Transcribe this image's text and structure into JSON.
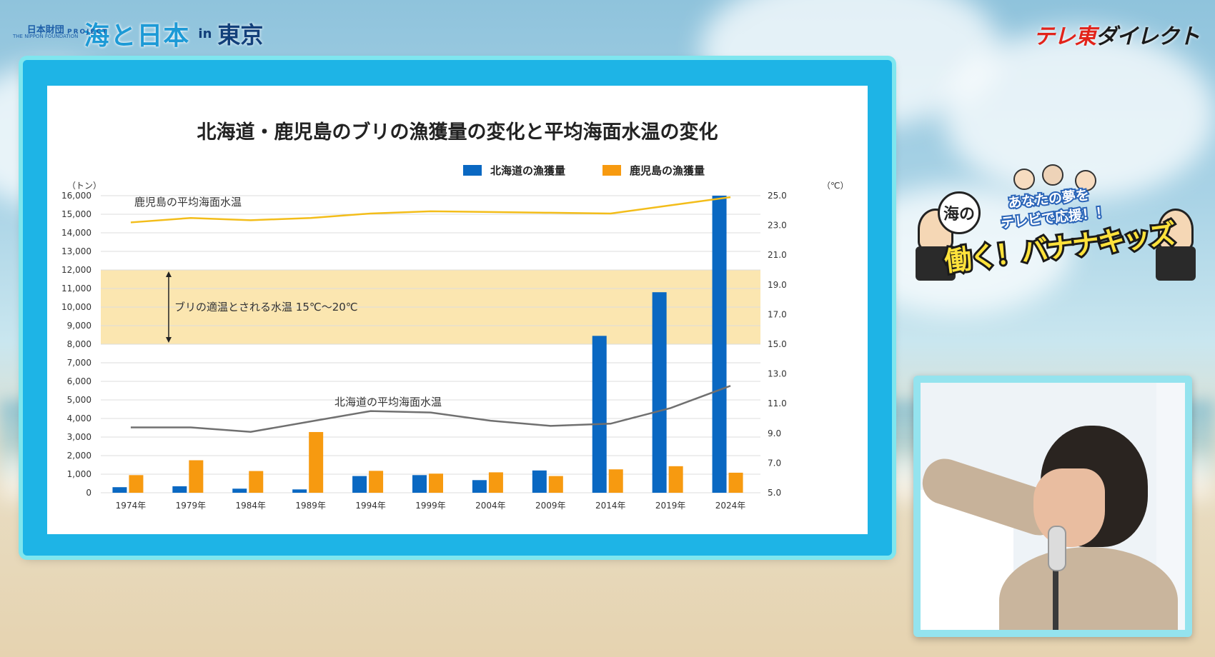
{
  "branding": {
    "left_mark": "日本財団",
    "left_small": "THE NIPPON FOUNDATION",
    "left_logo": "海と日本",
    "left_sub": "PROJECT",
    "left_in": "in",
    "left_city": "東京",
    "right_logo_a": "テレ東",
    "right_logo_b": "ダイレクト"
  },
  "show": {
    "umi": "海の",
    "tagline_1": "あなたの夢を",
    "tagline_2": "テレビで応援！！",
    "title": "働く！バナナキッズ"
  },
  "chart_data": {
    "type": "bar",
    "title": "北海道・鹿児島のブリの漁獲量の変化と平均海面水温の変化",
    "ylabel": "（トン）",
    "y2label": "（℃）",
    "categories": [
      "1974年",
      "1979年",
      "1984年",
      "1989年",
      "1994年",
      "1999年",
      "2004年",
      "2009年",
      "2014年",
      "2019年",
      "2024年"
    ],
    "ylim": [
      0,
      16000
    ],
    "yticks": [
      "0",
      "1,000",
      "2,000",
      "3,000",
      "4,000",
      "5,000",
      "6,000",
      "7,000",
      "8,000",
      "9,000",
      "10,000",
      "11,000",
      "12,000",
      "13,000",
      "14,000",
      "15,000",
      "16,000"
    ],
    "y2lim": [
      5.0,
      25.0
    ],
    "y2ticks": [
      "5.0",
      "7.0",
      "9.0",
      "11.0",
      "13.0",
      "15.0",
      "17.0",
      "19.0",
      "21.0",
      "23.0",
      "25.0"
    ],
    "grid": true,
    "legend_position": "top-right",
    "series": [
      {
        "name": "北海道の漁獲量",
        "kind": "bar",
        "color": "#0a68c2",
        "values": [
          300,
          350,
          220,
          180,
          900,
          950,
          680,
          1200,
          8450,
          10800,
          16000
        ]
      },
      {
        "name": "鹿児島の漁獲量",
        "kind": "bar",
        "color": "#f79a10",
        "values": [
          950,
          1750,
          1170,
          3270,
          1180,
          1030,
          1100,
          900,
          1260,
          1430,
          1080
        ]
      },
      {
        "name": "鹿児島の平均海面水温",
        "kind": "line",
        "axis": "right",
        "color": "#f3bd1a",
        "values": [
          23.2,
          23.5,
          23.35,
          23.5,
          23.8,
          23.95,
          23.9,
          23.85,
          23.8,
          24.35,
          24.9
        ]
      },
      {
        "name": "北海道の平均海面水温",
        "kind": "line",
        "axis": "right",
        "color": "#707070",
        "values": [
          9.4,
          9.4,
          9.1,
          9.8,
          10.5,
          10.4,
          9.85,
          9.5,
          9.65,
          10.7,
          12.2
        ]
      }
    ],
    "band": {
      "from": 8000,
      "to": 12000,
      "color": "#fbe6b0",
      "label": "ブリの適温とされる水温 15℃〜20℃"
    },
    "line_labels": {
      "kagoshima": "鹿児島の平均海面水温",
      "hokkaido": "北海道の平均海面水温"
    }
  }
}
